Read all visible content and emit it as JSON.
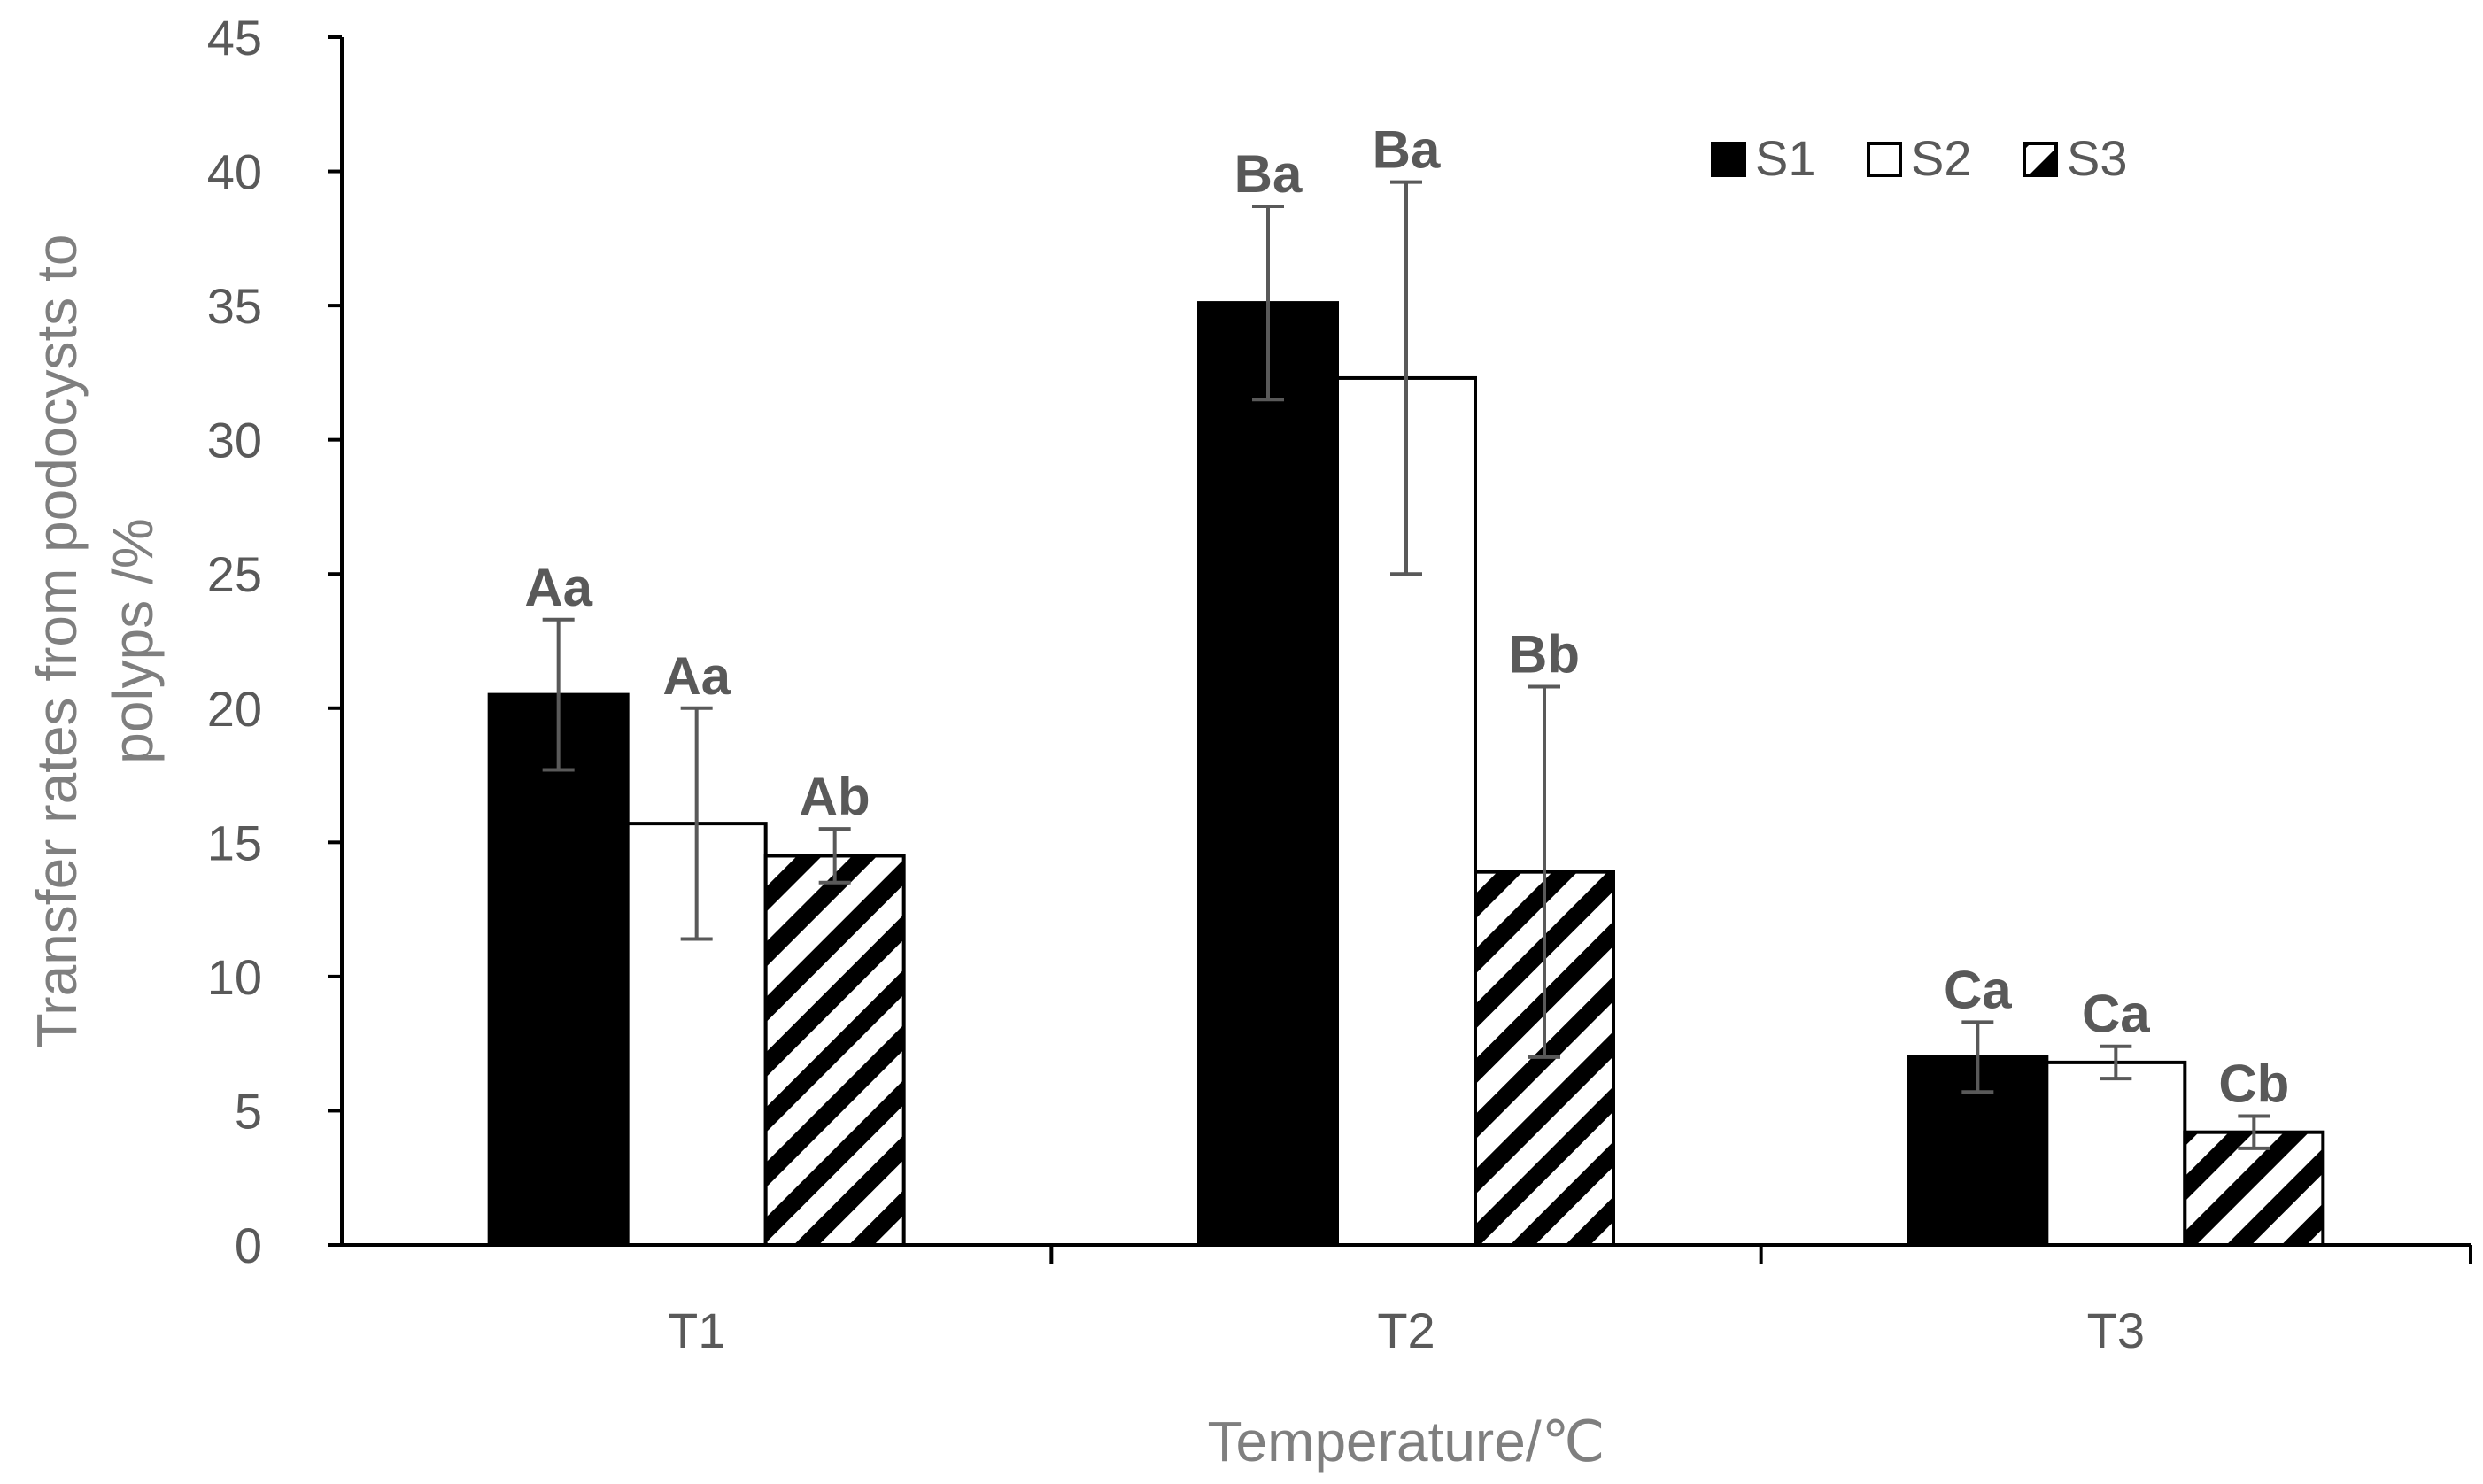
{
  "chart_data": {
    "type": "bar",
    "title": "",
    "xlabel": "Temperature/℃",
    "ylabel_lines": [
      "Transfer rates from podocysts to",
      "polyps /%"
    ],
    "ylim": [
      0,
      45
    ],
    "yticks": [
      0,
      5,
      10,
      15,
      20,
      25,
      30,
      35,
      40,
      45
    ],
    "categories": [
      "T1",
      "T2",
      "T3"
    ],
    "legend_position": "top-right",
    "series": [
      {
        "name": "S1",
        "fill": "solid-black",
        "values": [
          20.5,
          35.1,
          7.0
        ],
        "errors": [
          2.8,
          3.6,
          1.3
        ],
        "labels": [
          "Aa",
          "Ba",
          "Ca"
        ]
      },
      {
        "name": "S2",
        "fill": "white",
        "values": [
          15.7,
          32.3,
          6.8
        ],
        "errors": [
          4.3,
          7.3,
          0.6
        ],
        "labels": [
          "Aa",
          "Ba",
          "Ca"
        ]
      },
      {
        "name": "S3",
        "fill": "diagonal-hatch",
        "values": [
          14.5,
          13.9,
          4.2
        ],
        "errors": [
          1.0,
          6.9,
          0.6
        ],
        "labels": [
          "Ab",
          "Bb",
          "Cb"
        ]
      }
    ],
    "colors": {
      "bar_stroke": "#000000",
      "solid": "#000000",
      "white": "#ffffff",
      "error_bar": "#595959",
      "axis": "#000000"
    }
  }
}
